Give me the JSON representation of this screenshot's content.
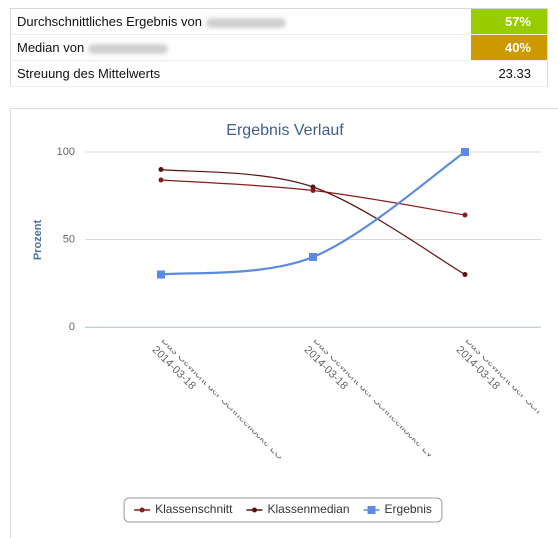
{
  "table": {
    "rows": [
      [
        "Durchschnittliches Ergebnis von",
        "57%"
      ],
      [
        "Median von",
        "40%"
      ],
      [
        "Streuung des Mittelwerts",
        "23.33"
      ]
    ]
  },
  "chart_data": {
    "type": "line",
    "title": "Ergebnis Verlauf",
    "y_label": "Prozent",
    "categories": [
      "Das Gewicht der Schneeflocke LG",
      "Das Gewicht der Schneeflocke LV",
      "Das Gewicht der Sch"
    ],
    "category_dates": [
      "2014-03-18",
      "2014-03-18",
      "2014-03-18"
    ],
    "series": [
      {
        "name": "Klassenschnitt",
        "color": "#8b1c1c",
        "marker": "circle",
        "values": [
          84,
          78,
          64
        ]
      },
      {
        "name": "Klassenmedian",
        "color": "#5c1010",
        "marker": "circle",
        "values": [
          90,
          80,
          30
        ]
      },
      {
        "name": "Ergebnis",
        "color": "#5b8ae2",
        "marker": "square",
        "values": [
          30,
          40,
          100
        ]
      }
    ],
    "ylim": [
      0,
      120
    ],
    "yticks": [
      0,
      50,
      100
    ],
    "grid": true,
    "legend": "bottom"
  }
}
